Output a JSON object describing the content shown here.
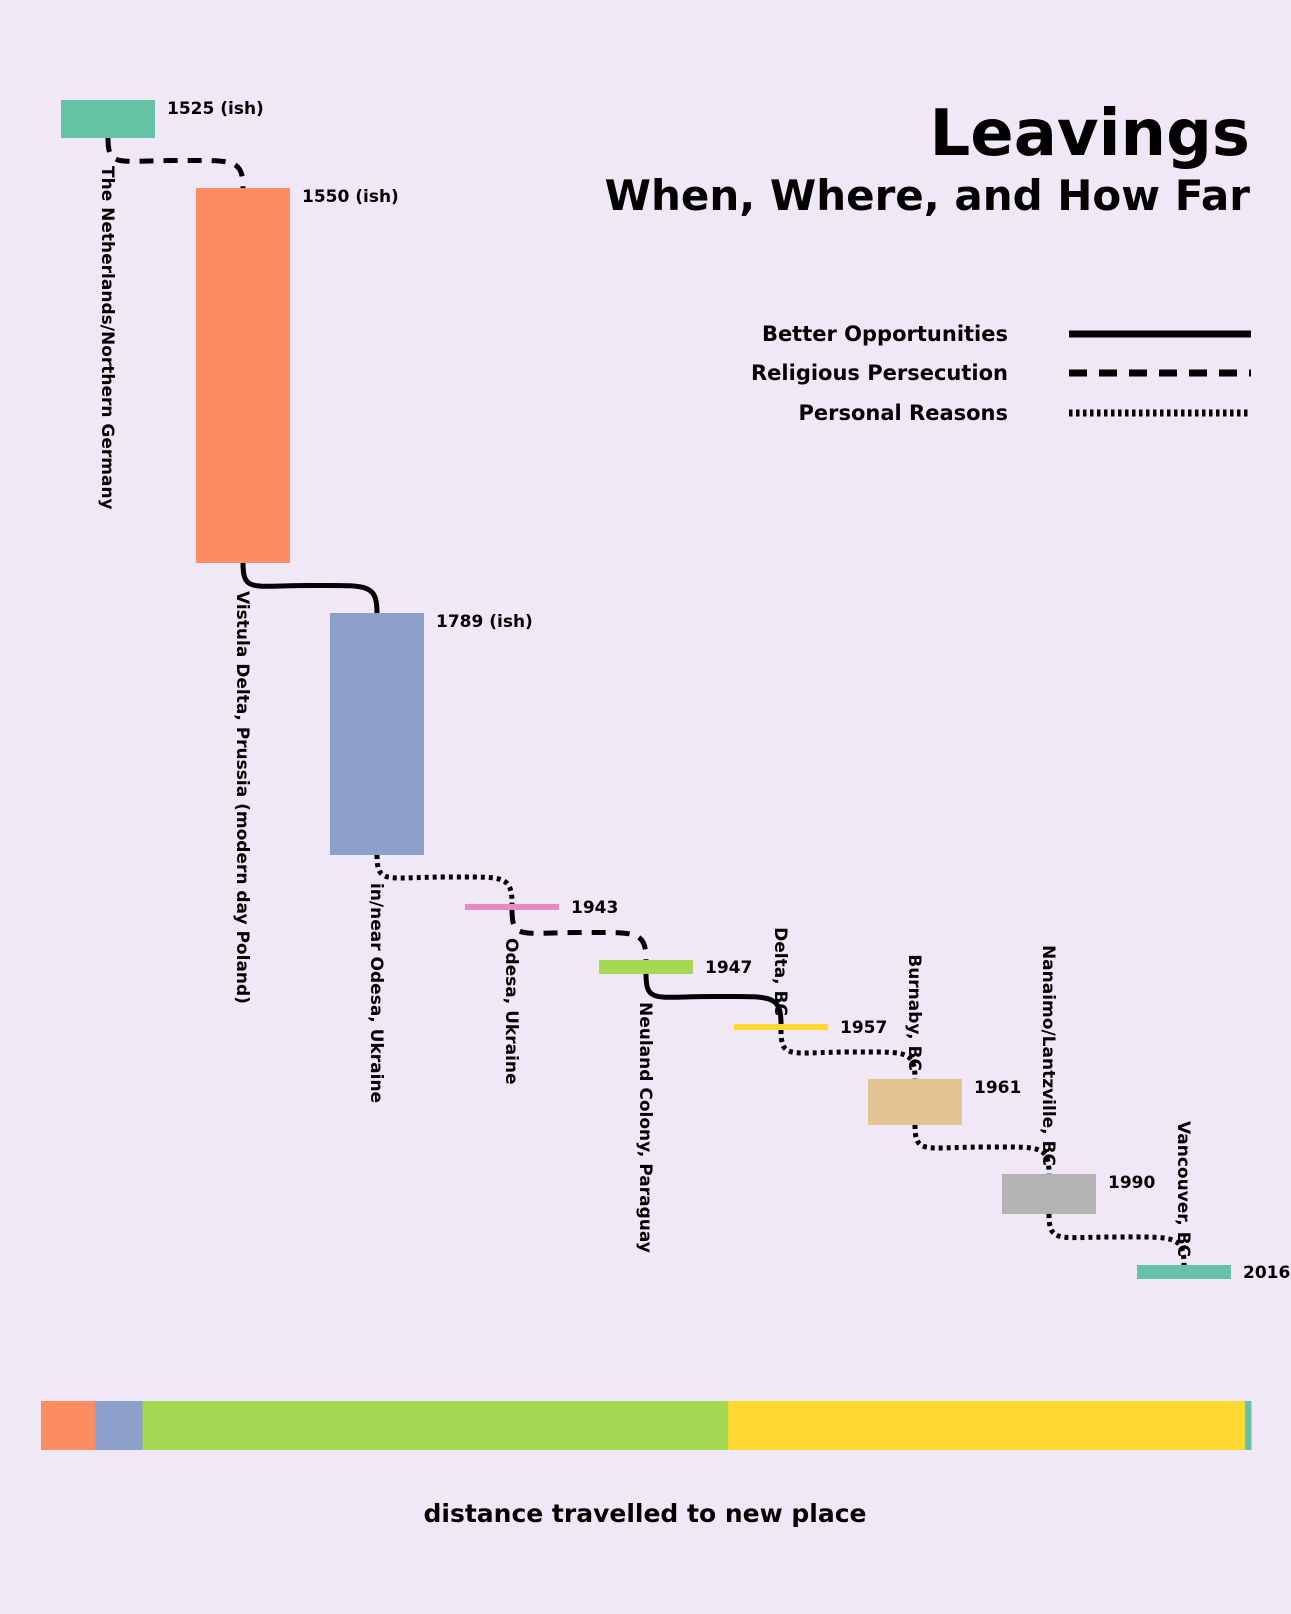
{
  "title": "Leavings",
  "subtitle": "When, Where, and How Far",
  "legend": [
    {
      "label": "Better Opportunities",
      "style": "solid"
    },
    {
      "label": "Religious Persecution",
      "style": "dashed"
    },
    {
      "label": "Personal Reasons",
      "style": "dotted"
    }
  ],
  "chart_data": {
    "type": "timeline",
    "title": "Leavings",
    "subtitle": "When, Where, and How Far",
    "xlabel": "distance travelled to new place",
    "places": [
      {
        "place": "The Netherlands/Northern Germany",
        "year_label": "1525 (ish)",
        "start": 1525,
        "end": 1550,
        "color": "#66c2a5"
      },
      {
        "place": "Vistula Delta, Prussia (modern day Poland)",
        "year_label": "1550 (ish)",
        "start": 1550,
        "end": 1789,
        "color": "#fc8d62"
      },
      {
        "place": "in/near Odesa, Ukraine",
        "year_label": "1789 (ish)",
        "start": 1789,
        "end": 1943,
        "color": "#8da0cb"
      },
      {
        "place": "Odesa, Ukraine",
        "year_label": "1943",
        "start": 1943,
        "end": 1943,
        "color": "#e78ac3"
      },
      {
        "place": "Neuland Colony, Paraguay",
        "year_label": "1947",
        "start": 1947,
        "end": 1947,
        "color": "#a6d854"
      },
      {
        "place": "Delta, BC",
        "year_label": "1957",
        "start": 1957,
        "end": 1957,
        "color": "#ffd92f"
      },
      {
        "place": "Burnaby, BC",
        "year_label": "1961",
        "start": 1961,
        "end": 1990,
        "color": "#e5c494"
      },
      {
        "place": "Nanaimo/Lantzville, BC",
        "year_label": "1990",
        "start": 1990,
        "end": 2016,
        "color": "#b3b3b3"
      },
      {
        "place": "Vancouver, BC",
        "year_label": "2016",
        "start": 2016,
        "end": 2016,
        "color": "#66c2a5"
      }
    ],
    "moves": [
      {
        "from": "The Netherlands/Northern Germany",
        "to": "Vistula Delta, Prussia (modern day Poland)",
        "reason": "Religious Persecution"
      },
      {
        "from": "Vistula Delta, Prussia (modern day Poland)",
        "to": "in/near Odesa, Ukraine",
        "reason": "Better Opportunities"
      },
      {
        "from": "in/near Odesa, Ukraine",
        "to": "Odesa, Ukraine",
        "reason": "Personal Reasons"
      },
      {
        "from": "Odesa, Ukraine",
        "to": "Neuland Colony, Paraguay",
        "reason": "Religious Persecution"
      },
      {
        "from": "Neuland Colony, Paraguay",
        "to": "Delta, BC",
        "reason": "Better Opportunities"
      },
      {
        "from": "Delta, BC",
        "to": "Burnaby, BC",
        "reason": "Personal Reasons"
      },
      {
        "from": "Burnaby, BC",
        "to": "Nanaimo/Lantzville, BC",
        "reason": "Personal Reasons"
      },
      {
        "from": "Nanaimo/Lantzville, BC",
        "to": "Vancouver, BC",
        "reason": "Personal Reasons"
      }
    ],
    "distance_bar": [
      {
        "to": "Vistula Delta, Prussia (modern day Poland)",
        "share": 4.5,
        "color": "#fc8d62"
      },
      {
        "to": "in/near Odesa, Ukraine",
        "share": 3.9,
        "color": "#8da0cb"
      },
      {
        "to": "Neuland Colony, Paraguay",
        "share": 48.4,
        "color": "#a6d854"
      },
      {
        "to": "Delta, BC",
        "share": 42.7,
        "color": "#ffd92f"
      },
      {
        "to": "Vancouver, BC",
        "share": 0.5,
        "color": "#66c2a5"
      }
    ]
  }
}
